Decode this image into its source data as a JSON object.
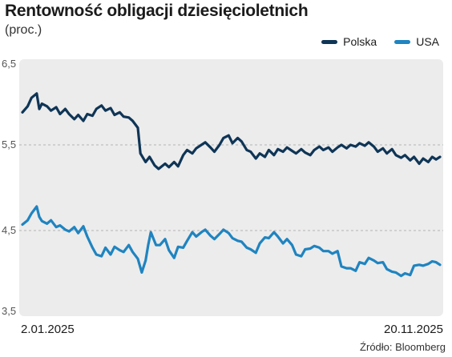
{
  "chart_data": {
    "type": "line",
    "title": "Rentowność obligacji dziesięcioletnich",
    "subtitle": "(proc.)",
    "yticks": [
      "6,5",
      "5,5",
      "4,5",
      "3,5"
    ],
    "ytick_values": [
      6.5,
      5.5,
      4.5,
      3.5
    ],
    "ylim": [
      3.5,
      6.5
    ],
    "xlim": [
      "2025-01-02",
      "2025-11-20"
    ],
    "x_start_label": "2.01.2025",
    "x_end_label": "20.11.2025",
    "grid": true,
    "legend_position": "top-right",
    "series": [
      {
        "name": "Polska",
        "color": "#0f3556",
        "points": [
          [
            "2025-01-02",
            5.88
          ],
          [
            "2025-01-06",
            5.95
          ],
          [
            "2025-01-09",
            6.05
          ],
          [
            "2025-01-13",
            6.1
          ],
          [
            "2025-01-15",
            5.92
          ],
          [
            "2025-01-17",
            5.98
          ],
          [
            "2025-01-21",
            5.95
          ],
          [
            "2025-01-24",
            5.9
          ],
          [
            "2025-01-28",
            5.94
          ],
          [
            "2025-01-31",
            5.86
          ],
          [
            "2025-02-04",
            5.92
          ],
          [
            "2025-02-07",
            5.86
          ],
          [
            "2025-02-11",
            5.8
          ],
          [
            "2025-02-14",
            5.85
          ],
          [
            "2025-02-18",
            5.78
          ],
          [
            "2025-02-21",
            5.86
          ],
          [
            "2025-02-25",
            5.84
          ],
          [
            "2025-02-28",
            5.92
          ],
          [
            "2025-03-04",
            5.96
          ],
          [
            "2025-03-07",
            5.9
          ],
          [
            "2025-03-11",
            5.93
          ],
          [
            "2025-03-14",
            5.85
          ],
          [
            "2025-03-18",
            5.88
          ],
          [
            "2025-03-21",
            5.83
          ],
          [
            "2025-03-25",
            5.82
          ],
          [
            "2025-03-28",
            5.78
          ],
          [
            "2025-04-01",
            5.7
          ],
          [
            "2025-04-03",
            5.4
          ],
          [
            "2025-04-07",
            5.3
          ],
          [
            "2025-04-10",
            5.36
          ],
          [
            "2025-04-14",
            5.26
          ],
          [
            "2025-04-17",
            5.22
          ],
          [
            "2025-04-22",
            5.28
          ],
          [
            "2025-04-25",
            5.24
          ],
          [
            "2025-04-29",
            5.3
          ],
          [
            "2025-05-02",
            5.25
          ],
          [
            "2025-05-06",
            5.38
          ],
          [
            "2025-05-09",
            5.44
          ],
          [
            "2025-05-13",
            5.4
          ],
          [
            "2025-05-16",
            5.46
          ],
          [
            "2025-05-20",
            5.5
          ],
          [
            "2025-05-23",
            5.53
          ],
          [
            "2025-05-27",
            5.47
          ],
          [
            "2025-05-30",
            5.42
          ],
          [
            "2025-06-03",
            5.5
          ],
          [
            "2025-06-06",
            5.58
          ],
          [
            "2025-06-10",
            5.61
          ],
          [
            "2025-06-13",
            5.52
          ],
          [
            "2025-06-17",
            5.58
          ],
          [
            "2025-06-20",
            5.54
          ],
          [
            "2025-06-24",
            5.44
          ],
          [
            "2025-06-27",
            5.42
          ],
          [
            "2025-07-01",
            5.34
          ],
          [
            "2025-07-04",
            5.4
          ],
          [
            "2025-07-08",
            5.36
          ],
          [
            "2025-07-11",
            5.44
          ],
          [
            "2025-07-15",
            5.38
          ],
          [
            "2025-07-18",
            5.45
          ],
          [
            "2025-07-22",
            5.42
          ],
          [
            "2025-07-25",
            5.47
          ],
          [
            "2025-07-29",
            5.43
          ],
          [
            "2025-08-01",
            5.4
          ],
          [
            "2025-08-05",
            5.45
          ],
          [
            "2025-08-08",
            5.41
          ],
          [
            "2025-08-12",
            5.38
          ],
          [
            "2025-08-15",
            5.44
          ],
          [
            "2025-08-19",
            5.48
          ],
          [
            "2025-08-22",
            5.44
          ],
          [
            "2025-08-26",
            5.47
          ],
          [
            "2025-08-29",
            5.42
          ],
          [
            "2025-09-02",
            5.47
          ],
          [
            "2025-09-05",
            5.5
          ],
          [
            "2025-09-09",
            5.46
          ],
          [
            "2025-09-12",
            5.5
          ],
          [
            "2025-09-16",
            5.48
          ],
          [
            "2025-09-19",
            5.52
          ],
          [
            "2025-09-23",
            5.49
          ],
          [
            "2025-09-26",
            5.53
          ],
          [
            "2025-09-30",
            5.48
          ],
          [
            "2025-10-03",
            5.42
          ],
          [
            "2025-10-07",
            5.46
          ],
          [
            "2025-10-10",
            5.4
          ],
          [
            "2025-10-14",
            5.45
          ],
          [
            "2025-10-17",
            5.38
          ],
          [
            "2025-10-21",
            5.35
          ],
          [
            "2025-10-24",
            5.38
          ],
          [
            "2025-10-28",
            5.32
          ],
          [
            "2025-10-31",
            5.36
          ],
          [
            "2025-11-04",
            5.28
          ],
          [
            "2025-11-07",
            5.34
          ],
          [
            "2025-11-11",
            5.3
          ],
          [
            "2025-11-14",
            5.36
          ],
          [
            "2025-11-17",
            5.33
          ],
          [
            "2025-11-20",
            5.36
          ]
        ]
      },
      {
        "name": "USA",
        "color": "#1f84c0",
        "points": [
          [
            "2025-01-02",
            4.57
          ],
          [
            "2025-01-06",
            4.62
          ],
          [
            "2025-01-09",
            4.7
          ],
          [
            "2025-01-13",
            4.78
          ],
          [
            "2025-01-15",
            4.66
          ],
          [
            "2025-01-17",
            4.61
          ],
          [
            "2025-01-21",
            4.58
          ],
          [
            "2025-01-24",
            4.62
          ],
          [
            "2025-01-28",
            4.54
          ],
          [
            "2025-01-31",
            4.56
          ],
          [
            "2025-02-04",
            4.51
          ],
          [
            "2025-02-07",
            4.49
          ],
          [
            "2025-02-11",
            4.54
          ],
          [
            "2025-02-14",
            4.47
          ],
          [
            "2025-02-18",
            4.55
          ],
          [
            "2025-02-21",
            4.43
          ],
          [
            "2025-02-25",
            4.3
          ],
          [
            "2025-02-28",
            4.22
          ],
          [
            "2025-03-04",
            4.2
          ],
          [
            "2025-03-07",
            4.3
          ],
          [
            "2025-03-11",
            4.22
          ],
          [
            "2025-03-14",
            4.31
          ],
          [
            "2025-03-18",
            4.27
          ],
          [
            "2025-03-21",
            4.25
          ],
          [
            "2025-03-25",
            4.33
          ],
          [
            "2025-03-28",
            4.25
          ],
          [
            "2025-04-01",
            4.17
          ],
          [
            "2025-04-04",
            4.01
          ],
          [
            "2025-04-07",
            4.15
          ],
          [
            "2025-04-09",
            4.33
          ],
          [
            "2025-04-11",
            4.48
          ],
          [
            "2025-04-15",
            4.33
          ],
          [
            "2025-04-18",
            4.33
          ],
          [
            "2025-04-22",
            4.4
          ],
          [
            "2025-04-25",
            4.27
          ],
          [
            "2025-04-29",
            4.18
          ],
          [
            "2025-05-02",
            4.31
          ],
          [
            "2025-05-06",
            4.3
          ],
          [
            "2025-05-09",
            4.38
          ],
          [
            "2025-05-13",
            4.48
          ],
          [
            "2025-05-16",
            4.43
          ],
          [
            "2025-05-20",
            4.48
          ],
          [
            "2025-05-23",
            4.51
          ],
          [
            "2025-05-27",
            4.44
          ],
          [
            "2025-05-30",
            4.4
          ],
          [
            "2025-06-03",
            4.46
          ],
          [
            "2025-06-06",
            4.51
          ],
          [
            "2025-06-10",
            4.47
          ],
          [
            "2025-06-13",
            4.41
          ],
          [
            "2025-06-17",
            4.38
          ],
          [
            "2025-06-20",
            4.37
          ],
          [
            "2025-06-24",
            4.3
          ],
          [
            "2025-06-27",
            4.28
          ],
          [
            "2025-07-01",
            4.24
          ],
          [
            "2025-07-04",
            4.35
          ],
          [
            "2025-07-08",
            4.42
          ],
          [
            "2025-07-11",
            4.41
          ],
          [
            "2025-07-15",
            4.48
          ],
          [
            "2025-07-18",
            4.43
          ],
          [
            "2025-07-22",
            4.35
          ],
          [
            "2025-07-25",
            4.4
          ],
          [
            "2025-07-29",
            4.33
          ],
          [
            "2025-08-01",
            4.22
          ],
          [
            "2025-08-05",
            4.2
          ],
          [
            "2025-08-08",
            4.28
          ],
          [
            "2025-08-12",
            4.29
          ],
          [
            "2025-08-15",
            4.32
          ],
          [
            "2025-08-19",
            4.3
          ],
          [
            "2025-08-22",
            4.26
          ],
          [
            "2025-08-26",
            4.26
          ],
          [
            "2025-08-29",
            4.23
          ],
          [
            "2025-09-02",
            4.26
          ],
          [
            "2025-09-05",
            4.08
          ],
          [
            "2025-09-09",
            4.06
          ],
          [
            "2025-09-12",
            4.06
          ],
          [
            "2025-09-16",
            4.03
          ],
          [
            "2025-09-19",
            4.13
          ],
          [
            "2025-09-23",
            4.11
          ],
          [
            "2025-09-26",
            4.18
          ],
          [
            "2025-09-30",
            4.15
          ],
          [
            "2025-10-03",
            4.12
          ],
          [
            "2025-10-07",
            4.13
          ],
          [
            "2025-10-10",
            4.05
          ],
          [
            "2025-10-14",
            4.02
          ],
          [
            "2025-10-17",
            4.01
          ],
          [
            "2025-10-21",
            3.97
          ],
          [
            "2025-10-24",
            4.0
          ],
          [
            "2025-10-28",
            3.98
          ],
          [
            "2025-10-31",
            4.09
          ],
          [
            "2025-11-04",
            4.1
          ],
          [
            "2025-11-07",
            4.09
          ],
          [
            "2025-11-11",
            4.11
          ],
          [
            "2025-11-14",
            4.14
          ],
          [
            "2025-11-17",
            4.13
          ],
          [
            "2025-11-20",
            4.1
          ]
        ]
      }
    ]
  },
  "source": "Źródło: Bloomberg"
}
